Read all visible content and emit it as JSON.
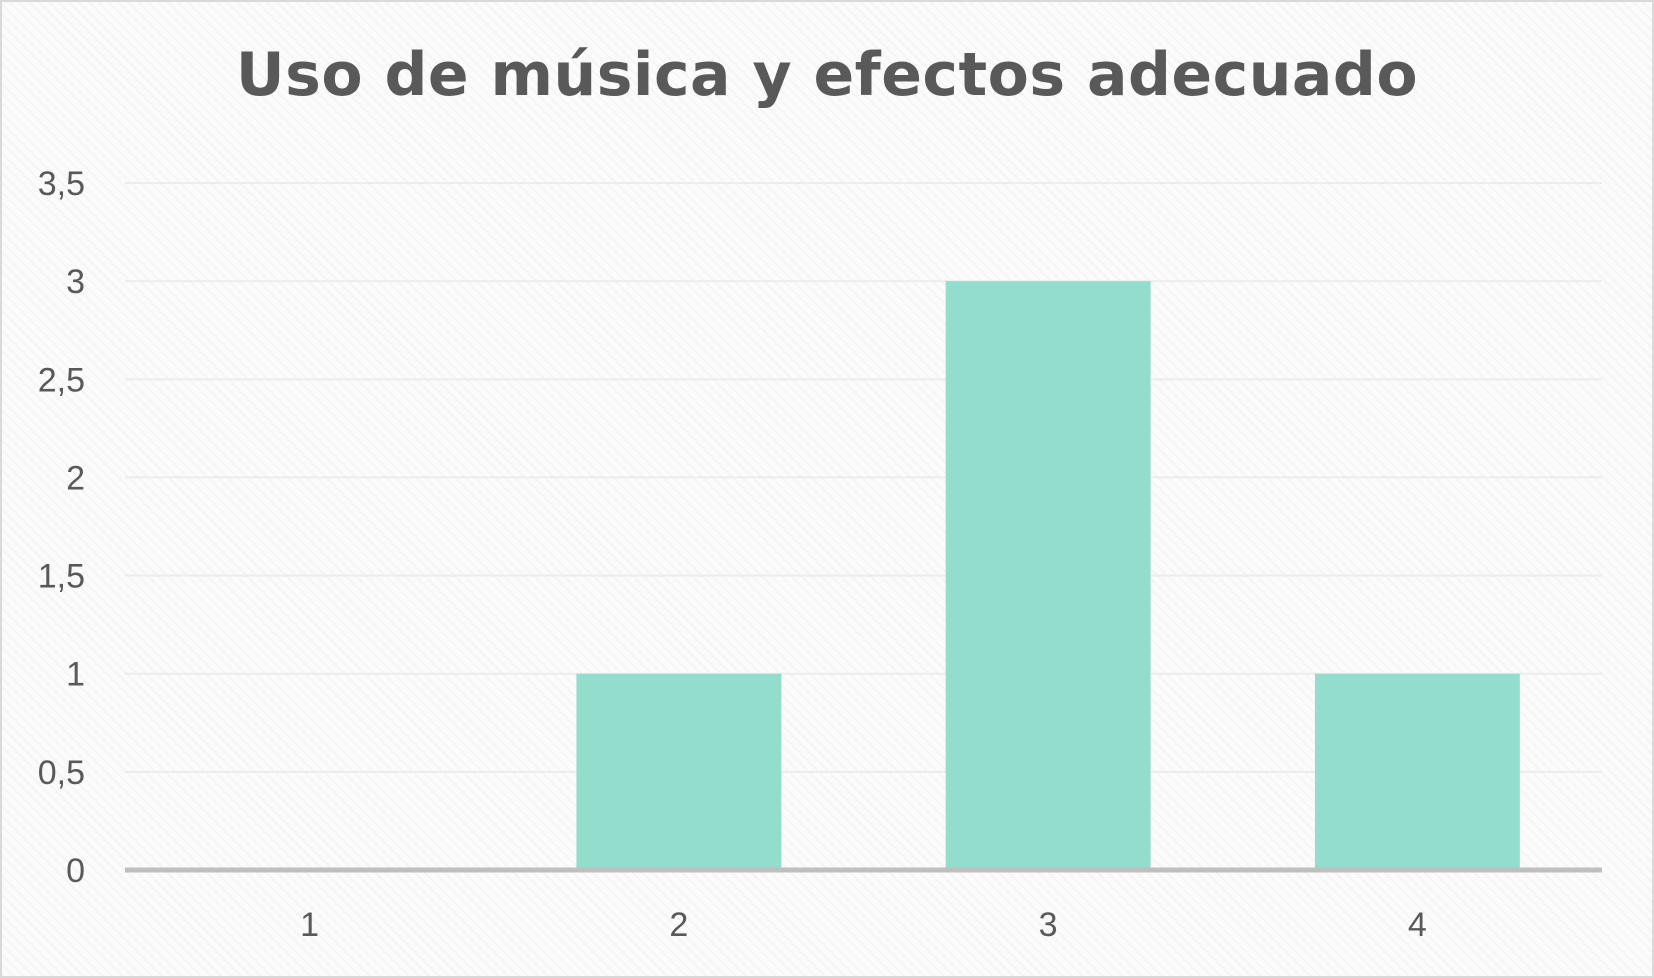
{
  "chart_data": {
    "type": "bar",
    "title": "Uso de música y efectos adecuado",
    "xlabel": "",
    "ylabel": "",
    "categories": [
      "1",
      "2",
      "3",
      "4"
    ],
    "values": [
      0,
      1,
      3,
      1
    ],
    "ylim": [
      0,
      3.5
    ],
    "yticks": [
      "0",
      "0,5",
      "1",
      "1,5",
      "2",
      "2,5",
      "3",
      "3,5"
    ],
    "grid": true,
    "legend": "none",
    "colors": {
      "bar": "#93ddcd",
      "gridline": "#ececec",
      "axis": "#bfbfbf",
      "text": "#595959"
    }
  }
}
